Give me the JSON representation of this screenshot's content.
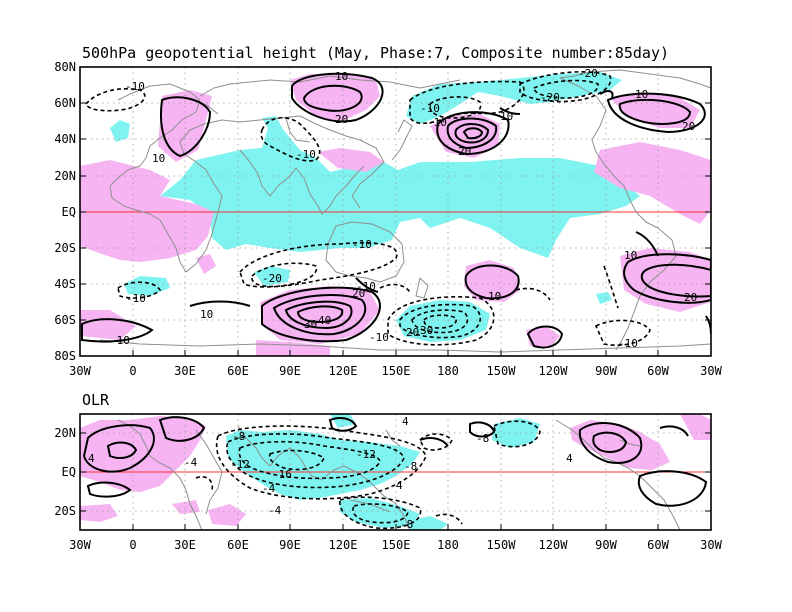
{
  "panels": {
    "height": {
      "title": "500hPa geopotential height (May, Phase:7, Composite number:85day)",
      "lat_labels": [
        "80N",
        "60N",
        "40N",
        "20N",
        "EQ",
        "20S",
        "40S",
        "60S",
        "80S"
      ],
      "contour_labels": [
        "10",
        "-10",
        "20",
        "-20",
        "10",
        "-10",
        "10",
        "20",
        "-10",
        "-10",
        "10",
        "30",
        "40",
        "20",
        "-20",
        "-10",
        "20",
        "-10",
        "-20",
        "-10",
        "10",
        "10",
        "20",
        "-10",
        "10",
        "30",
        "-10",
        "-10",
        "20"
      ]
    },
    "olr": {
      "title": "OLR",
      "lat_labels": [
        "20N",
        "EQ",
        "20S"
      ],
      "contour_labels": [
        "4",
        "-4",
        "-8",
        "-12",
        "-16",
        "-12",
        "-8",
        "-4",
        "4",
        "-4",
        "-8",
        "4",
        "-8",
        "4"
      ]
    }
  },
  "lon_labels": [
    "30W",
    "0",
    "30E",
    "60E",
    "90E",
    "120E",
    "150E",
    "180",
    "150W",
    "120W",
    "90W",
    "60W",
    "30W"
  ],
  "colors": {
    "positive_shading": "#f6b4f2",
    "negative_shading": "#7ff3ef",
    "equator_line": "#ff3030",
    "coastline": "#8f8f8f"
  }
}
